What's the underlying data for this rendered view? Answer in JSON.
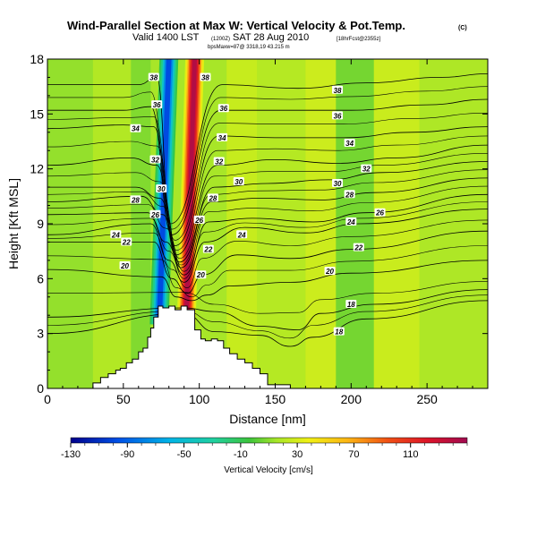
{
  "chart_data": {
    "type": "heatmap",
    "title": "Wind-Parallel Section at Max W: Vertical Velocity & Pot.Temp.",
    "title_mark": "(C)",
    "subtitle_valid": "Valid 1400 LST",
    "subtitle_utc": "(1200Z)",
    "subtitle_date": "SAT 28 Aug 2010",
    "subtitle_run": "[18hrFcst@2355z]",
    "subtitle_line3": "bpsMaxw=87@ 3318,19 43.215 m",
    "xlabel": "Distance [nm]",
    "ylabel": "Height [Kft MSL]",
    "xlim": [
      0,
      290
    ],
    "ylim": [
      0,
      18
    ],
    "xticks": [
      "0",
      "50",
      "100",
      "150",
      "200",
      "250"
    ],
    "xtick_values": [
      0,
      50,
      100,
      150,
      200,
      250
    ],
    "yticks": [
      "0",
      "3",
      "6",
      "9",
      "12",
      "15",
      "18"
    ],
    "ytick_values": [
      0,
      3,
      6,
      9,
      12,
      15,
      18
    ],
    "colorbar": {
      "label": "Vertical Velocity [cm/s]",
      "range": [
        -130,
        150
      ],
      "tick_labels": [
        "-130",
        "-90",
        "-50",
        "-10",
        "30",
        "70",
        "110"
      ],
      "tick_values": [
        -130,
        -90,
        -50,
        -10,
        30,
        70,
        110
      ]
    },
    "terrain_profile": {
      "x": [
        0,
        30,
        30,
        35,
        35,
        40,
        40,
        45,
        45,
        48,
        48,
        52,
        52,
        56,
        56,
        60,
        60,
        63,
        63,
        66,
        66,
        68,
        68,
        70,
        70,
        73,
        73,
        76,
        76,
        80,
        80,
        84,
        84,
        88,
        88,
        92,
        92,
        97,
        97,
        101,
        101,
        104,
        104,
        108,
        108,
        112,
        112,
        116,
        116,
        120,
        120,
        125,
        125,
        130,
        130,
        135,
        135,
        140,
        140,
        145,
        145,
        160,
        160,
        290
      ],
      "y": [
        0,
        0,
        0.3,
        0.3,
        0.6,
        0.6,
        0.8,
        0.8,
        1.0,
        1.0,
        1.1,
        1.1,
        1.4,
        1.4,
        1.6,
        1.6,
        2.0,
        2.0,
        2.2,
        2.2,
        2.8,
        2.8,
        3.3,
        3.3,
        3.9,
        3.9,
        4.5,
        4.5,
        4.4,
        4.4,
        4.5,
        4.5,
        4.3,
        4.3,
        4.5,
        4.5,
        4.3,
        4.3,
        3.2,
        3.2,
        2.7,
        2.7,
        2.6,
        2.6,
        2.7,
        2.7,
        2.6,
        2.6,
        2.2,
        2.2,
        1.9,
        1.9,
        1.6,
        1.6,
        1.4,
        1.4,
        1.1,
        1.1,
        0.8,
        0.8,
        0.2,
        0.2,
        0
      ]
    },
    "vertical_velocity_features": [
      {
        "name": "updraft-core",
        "x_center": 97,
        "width": 8,
        "tilt": 7,
        "peak_cm_s": 140
      },
      {
        "name": "downdraft-core",
        "x_center": 80,
        "width": 8,
        "tilt": 8,
        "peak_cm_s": -105
      }
    ],
    "theta_contours": [
      {
        "label": "18",
        "points": [
          [
            0,
            3.0
          ],
          [
            90,
            4.1
          ],
          [
            110,
            3.1
          ],
          [
            140,
            2.9
          ],
          [
            160,
            2.3
          ],
          [
            175,
            2.8
          ],
          [
            210,
            3.8
          ],
          [
            290,
            4.8
          ]
        ]
      },
      {
        "label": "18",
        "points": [
          [
            0,
            3.9
          ],
          [
            90,
            4.4
          ],
          [
            110,
            4.2
          ],
          [
            140,
            3.4
          ],
          [
            165,
            3.2
          ],
          [
            180,
            4.1
          ],
          [
            215,
            4.6
          ],
          [
            290,
            5.4
          ]
        ]
      },
      {
        "label": "20",
        "points": [
          [
            0,
            6.5
          ],
          [
            75,
            6.1
          ],
          [
            85,
            5.0
          ],
          [
            95,
            4.8
          ],
          [
            105,
            5.1
          ],
          [
            120,
            5.6
          ],
          [
            160,
            5.8
          ],
          [
            200,
            6.3
          ],
          [
            290,
            7.0
          ]
        ]
      },
      {
        "label": "22",
        "points": [
          [
            0,
            8.0
          ],
          [
            70,
            8.0
          ],
          [
            82,
            6.0
          ],
          [
            92,
            5.2
          ],
          [
            102,
            6.2
          ],
          [
            125,
            7.3
          ],
          [
            160,
            7.1
          ],
          [
            200,
            7.6
          ],
          [
            290,
            8.6
          ]
        ]
      },
      {
        "label": "24",
        "points": [
          [
            0,
            8.4
          ],
          [
            68,
            9.0
          ],
          [
            80,
            7.0
          ],
          [
            90,
            5.8
          ],
          [
            104,
            8.0
          ],
          [
            130,
            8.8
          ],
          [
            170,
            8.5
          ],
          [
            205,
            9.0
          ],
          [
            290,
            9.8
          ]
        ]
      },
      {
        "label": "26",
        "points": [
          [
            0,
            9.5
          ],
          [
            66,
            9.6
          ],
          [
            78,
            8.0
          ],
          [
            90,
            6.2
          ],
          [
            106,
            9.1
          ],
          [
            135,
            9.3
          ],
          [
            175,
            9.1
          ],
          [
            210,
            9.6
          ],
          [
            290,
            10.6
          ]
        ]
      },
      {
        "label": "28",
        "points": [
          [
            0,
            10.2
          ],
          [
            62,
            10.5
          ],
          [
            76,
            9.5
          ],
          [
            88,
            6.6
          ],
          [
            108,
            10.2
          ],
          [
            140,
            10.4
          ],
          [
            180,
            10.3
          ],
          [
            215,
            10.7
          ],
          [
            290,
            11.5
          ]
        ]
      },
      {
        "label": "30",
        "points": [
          [
            0,
            11.0
          ],
          [
            58,
            11.0
          ],
          [
            74,
            10.4
          ],
          [
            87,
            6.9
          ],
          [
            110,
            11.0
          ],
          [
            145,
            11.2
          ],
          [
            185,
            11.4
          ],
          [
            220,
            11.8
          ],
          [
            290,
            12.4
          ]
        ]
      },
      {
        "label": "32",
        "points": [
          [
            0,
            12.2
          ],
          [
            55,
            12.6
          ],
          [
            72,
            12.2
          ],
          [
            85,
            7.3
          ],
          [
            112,
            12.2
          ],
          [
            150,
            12.5
          ],
          [
            190,
            12.3
          ],
          [
            230,
            12.6
          ],
          [
            290,
            13.3
          ]
        ]
      },
      {
        "label": "34",
        "points": [
          [
            0,
            14.2
          ],
          [
            50,
            14.4
          ],
          [
            70,
            14.3
          ],
          [
            84,
            7.8
          ],
          [
            113,
            13.8
          ],
          [
            150,
            13.7
          ],
          [
            195,
            13.7
          ],
          [
            240,
            14.0
          ],
          [
            290,
            14.3
          ]
        ]
      },
      {
        "label": "36",
        "points": [
          [
            0,
            15.2
          ],
          [
            50,
            15.2
          ],
          [
            68,
            15.4
          ],
          [
            82,
            8.4
          ],
          [
            114,
            15.2
          ],
          [
            160,
            15.2
          ],
          [
            200,
            15.2
          ],
          [
            250,
            15.5
          ],
          [
            290,
            15.8
          ]
        ]
      },
      {
        "label": "38",
        "points": [
          [
            0,
            16.6
          ],
          [
            60,
            16.6
          ],
          [
            72,
            17.0
          ],
          [
            81,
            9.0
          ],
          [
            115,
            16.6
          ],
          [
            165,
            16.4
          ],
          [
            210,
            16.7
          ],
          [
            260,
            17.0
          ],
          [
            290,
            17.2
          ]
        ]
      }
    ],
    "contour_labels": [
      {
        "text": "38",
        "x": 70,
        "y": 17.0
      },
      {
        "text": "38",
        "x": 104,
        "y": 17.0
      },
      {
        "text": "38",
        "x": 191,
        "y": 16.3
      },
      {
        "text": "36",
        "x": 72,
        "y": 15.5
      },
      {
        "text": "36",
        "x": 116,
        "y": 15.3
      },
      {
        "text": "36",
        "x": 191,
        "y": 14.9
      },
      {
        "text": "34",
        "x": 58,
        "y": 14.2
      },
      {
        "text": "34",
        "x": 115,
        "y": 13.7
      },
      {
        "text": "34",
        "x": 199,
        "y": 13.4
      },
      {
        "text": "32",
        "x": 71,
        "y": 12.5
      },
      {
        "text": "32",
        "x": 113,
        "y": 12.4
      },
      {
        "text": "32",
        "x": 210,
        "y": 12.0
      },
      {
        "text": "30",
        "x": 75,
        "y": 10.9
      },
      {
        "text": "30",
        "x": 126,
        "y": 11.3
      },
      {
        "text": "30",
        "x": 191,
        "y": 11.2
      },
      {
        "text": "28",
        "x": 58,
        "y": 10.3
      },
      {
        "text": "28",
        "x": 109,
        "y": 10.4
      },
      {
        "text": "28",
        "x": 199,
        "y": 10.6
      },
      {
        "text": "26",
        "x": 71,
        "y": 9.5
      },
      {
        "text": "26",
        "x": 100,
        "y": 9.2
      },
      {
        "text": "26",
        "x": 219,
        "y": 9.6
      },
      {
        "text": "24",
        "x": 45,
        "y": 8.4
      },
      {
        "text": "24",
        "x": 128,
        "y": 8.4
      },
      {
        "text": "24",
        "x": 200,
        "y": 9.1
      },
      {
        "text": "22",
        "x": 52,
        "y": 8.0
      },
      {
        "text": "22",
        "x": 106,
        "y": 7.6
      },
      {
        "text": "22",
        "x": 205,
        "y": 7.7
      },
      {
        "text": "20",
        "x": 51,
        "y": 6.7
      },
      {
        "text": "20",
        "x": 101,
        "y": 6.2
      },
      {
        "text": "20",
        "x": 186,
        "y": 6.4
      },
      {
        "text": "18",
        "x": 200,
        "y": 4.6
      },
      {
        "text": "18",
        "x": 192,
        "y": 3.1
      }
    ]
  }
}
